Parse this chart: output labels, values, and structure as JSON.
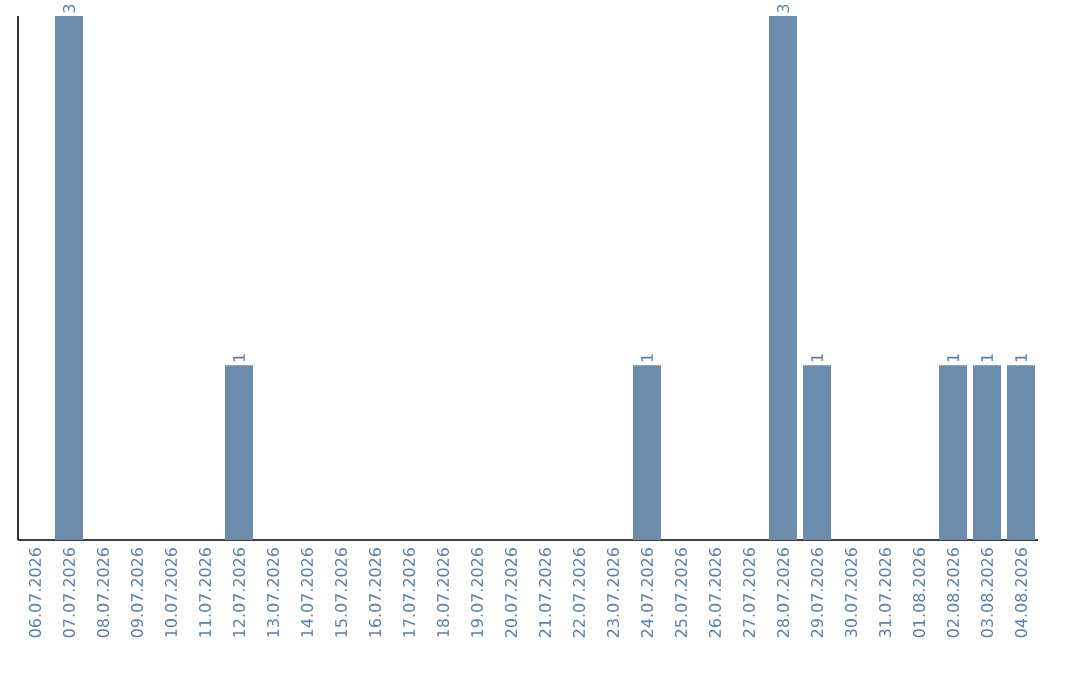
{
  "chart_data": {
    "type": "bar",
    "categories": [
      "06.07.2026",
      "07.07.2026",
      "08.07.2026",
      "09.07.2026",
      "10.07.2026",
      "11.07.2026",
      "12.07.2026",
      "13.07.2026",
      "14.07.2026",
      "15.07.2026",
      "16.07.2026",
      "17.07.2026",
      "18.07.2026",
      "19.07.2026",
      "20.07.2026",
      "21.07.2026",
      "22.07.2026",
      "23.07.2026",
      "24.07.2026",
      "25.07.2026",
      "26.07.2026",
      "27.07.2026",
      "28.07.2026",
      "29.07.2026",
      "30.07.2026",
      "31.07.2026",
      "01.08.2026",
      "02.08.2026",
      "03.08.2026",
      "04.08.2026"
    ],
    "values": [
      0,
      3,
      0,
      0,
      0,
      0,
      1,
      0,
      0,
      0,
      0,
      0,
      0,
      0,
      0,
      0,
      0,
      0,
      1,
      0,
      0,
      0,
      3,
      1,
      0,
      0,
      0,
      1,
      1,
      1
    ],
    "value_labels": [
      null,
      "3",
      null,
      null,
      null,
      null,
      "1",
      null,
      null,
      null,
      null,
      null,
      null,
      null,
      null,
      null,
      null,
      null,
      "1",
      null,
      null,
      null,
      "3",
      "1",
      null,
      null,
      null,
      "1",
      "1",
      "1"
    ],
    "color": "#6b8cab",
    "tick_labels": "x"
  }
}
